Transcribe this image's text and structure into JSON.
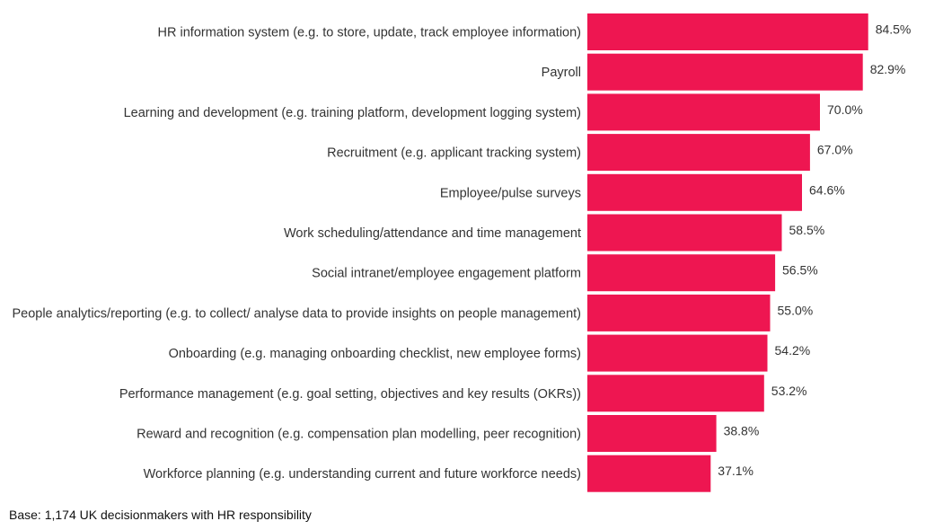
{
  "chart_data": {
    "type": "bar",
    "orientation": "horizontal",
    "categories": [
      "HR information system (e.g. to store, update, track employee information)",
      "Payroll",
      "Learning and development (e.g. training platform, development logging system)",
      "Recruitment (e.g. applicant tracking system)",
      "Employee/pulse surveys",
      "Work scheduling/attendance and time management",
      "Social intranet/employee engagement platform",
      "People analytics/reporting (e.g. to collect/ analyse data to provide insights on people management)",
      "Onboarding (e.g. managing onboarding checklist, new employee forms)",
      "Performance management (e.g. goal setting, objectives and key results (OKRs))",
      "Reward and recognition (e.g. compensation plan modelling, peer recognition)",
      "Workforce planning (e.g. understanding current and future workforce needs)"
    ],
    "values": [
      84.5,
      82.9,
      70.0,
      67.0,
      64.6,
      58.5,
      56.5,
      55.0,
      54.2,
      53.2,
      38.8,
      37.1
    ],
    "value_labels": [
      "84.5%",
      "82.9%",
      "70.0%",
      "67.0%",
      "64.6%",
      "58.5%",
      "56.5%",
      "55.0%",
      "54.2%",
      "53.2%",
      "38.8%",
      "37.1%"
    ],
    "unit": "%",
    "xlim": [
      0,
      100
    ],
    "grid": false,
    "legend": "none",
    "bar_color": "#ee1651",
    "note": "Base: 1,174 UK decisionmakers with HR responsibility"
  }
}
